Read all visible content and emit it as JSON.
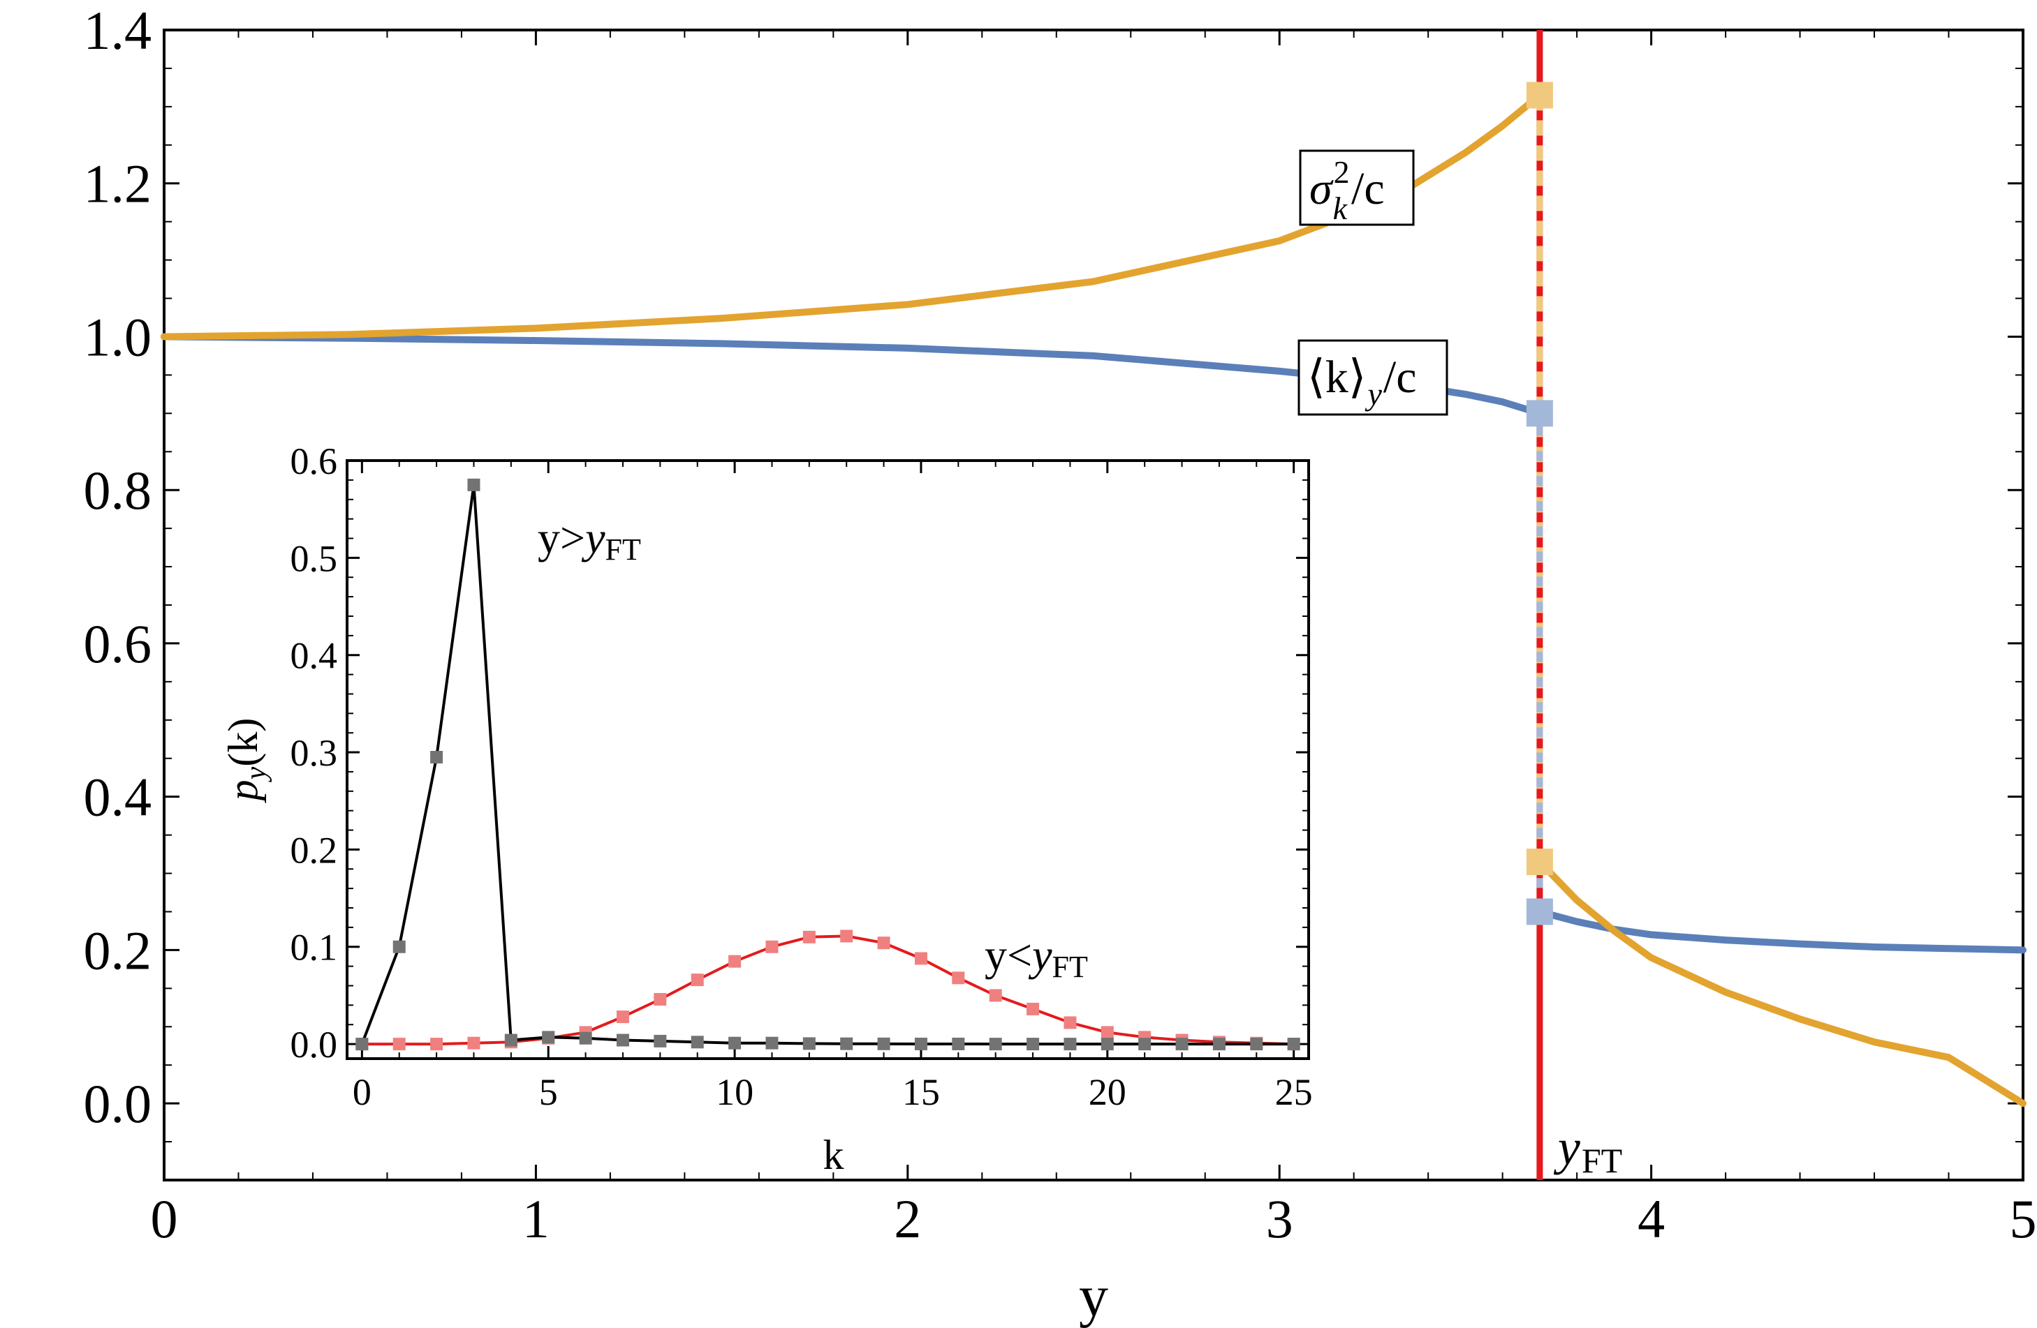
{
  "chart_data": [
    {
      "type": "line",
      "title": "",
      "xlabel": "y",
      "ylabel": "",
      "xlim": [
        0,
        5
      ],
      "ylim": [
        -0.1,
        1.4
      ],
      "xticks": [
        "0",
        "1",
        "2",
        "3",
        "4",
        "5"
      ],
      "yticks": [
        "0.0",
        "0.2",
        "0.4",
        "0.6",
        "0.8",
        "1.0",
        "1.2",
        "1.4"
      ],
      "grid": false,
      "legend": "none",
      "transition": {
        "x": 3.7,
        "label_main": "y",
        "label_sub": "FT",
        "color": "#e41a1c"
      },
      "series": [
        {
          "name": "sigma_k^2/c",
          "label_parts": {
            "sym": "σ",
            "sup": "2",
            "sub": "k",
            "rest": "/c"
          },
          "color": "#e3a32f",
          "branch1": {
            "x": [
              0,
              0.5,
              1.0,
              1.5,
              2.0,
              2.5,
              3.0,
              3.3,
              3.5,
              3.6,
              3.7
            ],
            "y": [
              1.0,
              1.003,
              1.011,
              1.024,
              1.042,
              1.072,
              1.125,
              1.18,
              1.24,
              1.275,
              1.315
            ]
          },
          "branch2": {
            "x": [
              3.7,
              3.8,
              3.9,
              4.0,
              4.2,
              4.4,
              4.6,
              4.8,
              5.0
            ],
            "y": [
              0.315,
              0.265,
              0.225,
              0.19,
              0.145,
              0.11,
              0.08,
              0.06,
              0.0
            ]
          },
          "markers": [
            {
              "x": 3.7,
              "y": 1.315
            },
            {
              "x": 3.7,
              "y": 0.315
            }
          ],
          "marker_color": "#f0c97f"
        },
        {
          "name": "<k>_y/c",
          "label_parts": {
            "open": "⟨k⟩",
            "sub": "y",
            "rest": "/c"
          },
          "color": "#5b7fb8",
          "branch1": {
            "x": [
              0,
              0.5,
              1.0,
              1.5,
              2.0,
              2.5,
              3.0,
              3.3,
              3.5,
              3.6,
              3.7
            ],
            "y": [
              1.0,
              0.998,
              0.995,
              0.991,
              0.985,
              0.975,
              0.955,
              0.94,
              0.925,
              0.915,
              0.9
            ]
          },
          "branch2": {
            "x": [
              3.7,
              3.8,
              3.9,
              4.0,
              4.2,
              4.4,
              4.6,
              4.8,
              5.0
            ],
            "y": [
              0.25,
              0.237,
              0.227,
              0.22,
              0.213,
              0.208,
              0.204,
              0.202,
              0.2
            ]
          },
          "markers": [
            {
              "x": 3.7,
              "y": 0.9
            },
            {
              "x": 3.7,
              "y": 0.25
            }
          ],
          "marker_color": "#a3b8d9"
        }
      ]
    },
    {
      "type": "line",
      "title": "",
      "xlabel": "k",
      "ylabel_parts": {
        "main": "p",
        "sub": "y",
        "rest": "(k)"
      },
      "xlim": [
        -0.4,
        25.4
      ],
      "ylim": [
        -0.015,
        0.6
      ],
      "xticks": [
        "0",
        "5",
        "10",
        "15",
        "20",
        "25"
      ],
      "yticks": [
        "0.0",
        "0.1",
        "0.2",
        "0.3",
        "0.4",
        "0.5",
        "0.6"
      ],
      "grid": false,
      "legend": "none",
      "series": [
        {
          "name": "y>y_FT",
          "label_parts": {
            "main": "y>",
            "var": "y",
            "sub": "FT"
          },
          "color": "#000000",
          "marker_color": "#737373",
          "x": [
            0,
            1,
            2,
            3,
            4,
            5,
            6,
            7,
            8,
            9,
            10,
            11,
            12,
            13,
            14,
            15,
            16,
            17,
            18,
            19,
            20,
            21,
            22,
            23,
            24,
            25
          ],
          "y": [
            0.0,
            0.1,
            0.295,
            0.575,
            0.004,
            0.007,
            0.006,
            0.004,
            0.003,
            0.002,
            0.001,
            0.001,
            0.0005,
            0.0003,
            0.0002,
            0.0001,
            0.0001,
            0.0,
            0.0,
            0.0,
            0.0,
            0.0,
            0.0,
            0.0,
            0.0,
            0.0
          ]
        },
        {
          "name": "y<y_FT",
          "label_parts": {
            "main": "y<",
            "var": "y",
            "sub": "FT"
          },
          "color": "#e41a1c",
          "marker_color": "#f08080",
          "x": [
            0,
            1,
            2,
            3,
            4,
            5,
            6,
            7,
            8,
            9,
            10,
            11,
            12,
            13,
            14,
            15,
            16,
            17,
            18,
            19,
            20,
            21,
            22,
            23,
            24,
            25
          ],
          "y": [
            0.0,
            0.0,
            0.0,
            0.001,
            0.002,
            0.006,
            0.012,
            0.028,
            0.046,
            0.066,
            0.085,
            0.1,
            0.11,
            0.111,
            0.104,
            0.088,
            0.068,
            0.05,
            0.036,
            0.022,
            0.012,
            0.007,
            0.004,
            0.002,
            0.001,
            0.0
          ]
        }
      ]
    }
  ]
}
